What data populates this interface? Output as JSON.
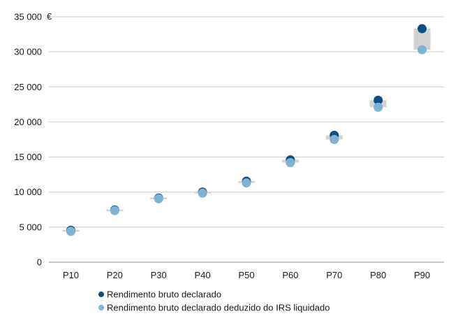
{
  "chart_data": {
    "type": "scatter",
    "unit": "€",
    "categories": [
      "P10",
      "P20",
      "P30",
      "P40",
      "P50",
      "P60",
      "P70",
      "P80",
      "P90"
    ],
    "y_ticks": [
      "0",
      "5 000",
      "10 000",
      "15 000",
      "20 000",
      "25 000",
      "30 000",
      "35 000"
    ],
    "y_tick_values": [
      0,
      5000,
      10000,
      15000,
      20000,
      25000,
      30000,
      35000
    ],
    "ylim": [
      0,
      35000
    ],
    "grid": true,
    "legend_position": "bottom-left",
    "series": [
      {
        "name": "Rendimento bruto declarado",
        "color": "#0b4f85",
        "values": [
          4550,
          7450,
          9150,
          10000,
          11550,
          14600,
          18100,
          23100,
          33300
        ]
      },
      {
        "name": "Rendimento bruto declarado deduzido do IRS liquidado",
        "color": "#7fb3d6",
        "values": [
          4400,
          7350,
          9050,
          9850,
          11300,
          14200,
          17500,
          22100,
          30300
        ]
      }
    ],
    "range_band_color": "#d3d3d3"
  }
}
